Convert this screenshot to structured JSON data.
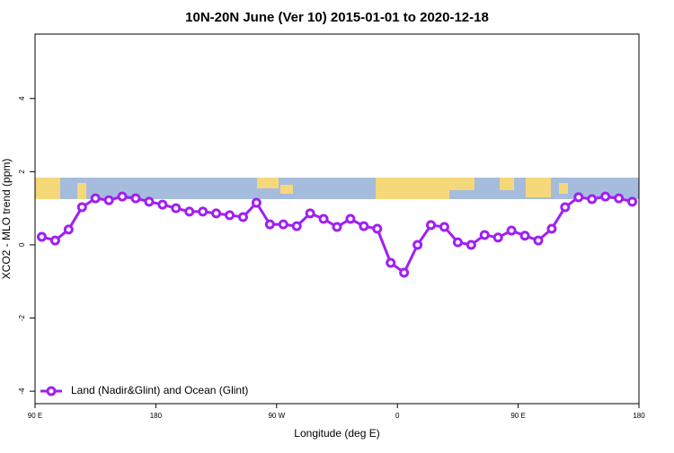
{
  "chart_data": {
    "type": "line",
    "title": "10N-20N June (Ver 10)   2015-01-01 to 2020-12-18",
    "x_label": "Longitude (deg E)",
    "y_label": "XCO2 - MLO trend (ppm)",
    "x": [
      95,
      105,
      115,
      125,
      135,
      145,
      155,
      165,
      175,
      185,
      195,
      205,
      215,
      225,
      235,
      245,
      255,
      265,
      275,
      285,
      295,
      305,
      315,
      325,
      335,
      345,
      355,
      365,
      375,
      385,
      395,
      405,
      415,
      425,
      435,
      445,
      455,
      465,
      475,
      485,
      495,
      505,
      515,
      525,
      535
    ],
    "series": [
      {
        "name": "Land (Nadir&Glint) and Ocean (Glint)",
        "color": "#a020f0",
        "values": [
          0.22,
          0.12,
          0.42,
          1.03,
          1.27,
          1.22,
          1.32,
          1.27,
          1.18,
          1.1,
          1.0,
          0.91,
          0.91,
          0.86,
          0.81,
          0.76,
          1.15,
          0.56,
          0.56,
          0.51,
          0.86,
          0.71,
          0.49,
          0.71,
          0.51,
          0.44,
          -0.49,
          -0.76,
          0.0,
          0.54,
          0.49,
          0.07,
          0.0,
          0.27,
          0.2,
          0.39,
          0.25,
          0.12,
          0.44,
          1.03,
          1.3,
          1.25,
          1.32,
          1.27,
          1.18
        ]
      }
    ],
    "xlim": [
      90,
      540
    ],
    "xticks": [
      {
        "value": 90,
        "label": "90 E"
      },
      {
        "value": 180,
        "label": "180"
      },
      {
        "value": 270,
        "label": "90 W"
      },
      {
        "value": 360,
        "label": "0"
      },
      {
        "value": 450,
        "label": "90 E"
      },
      {
        "value": 540,
        "label": "180"
      }
    ],
    "ylim": [
      -4.34,
      5.76
    ],
    "yticks": [
      -4,
      -2,
      0,
      2,
      4
    ],
    "legend": "bottom-left"
  }
}
